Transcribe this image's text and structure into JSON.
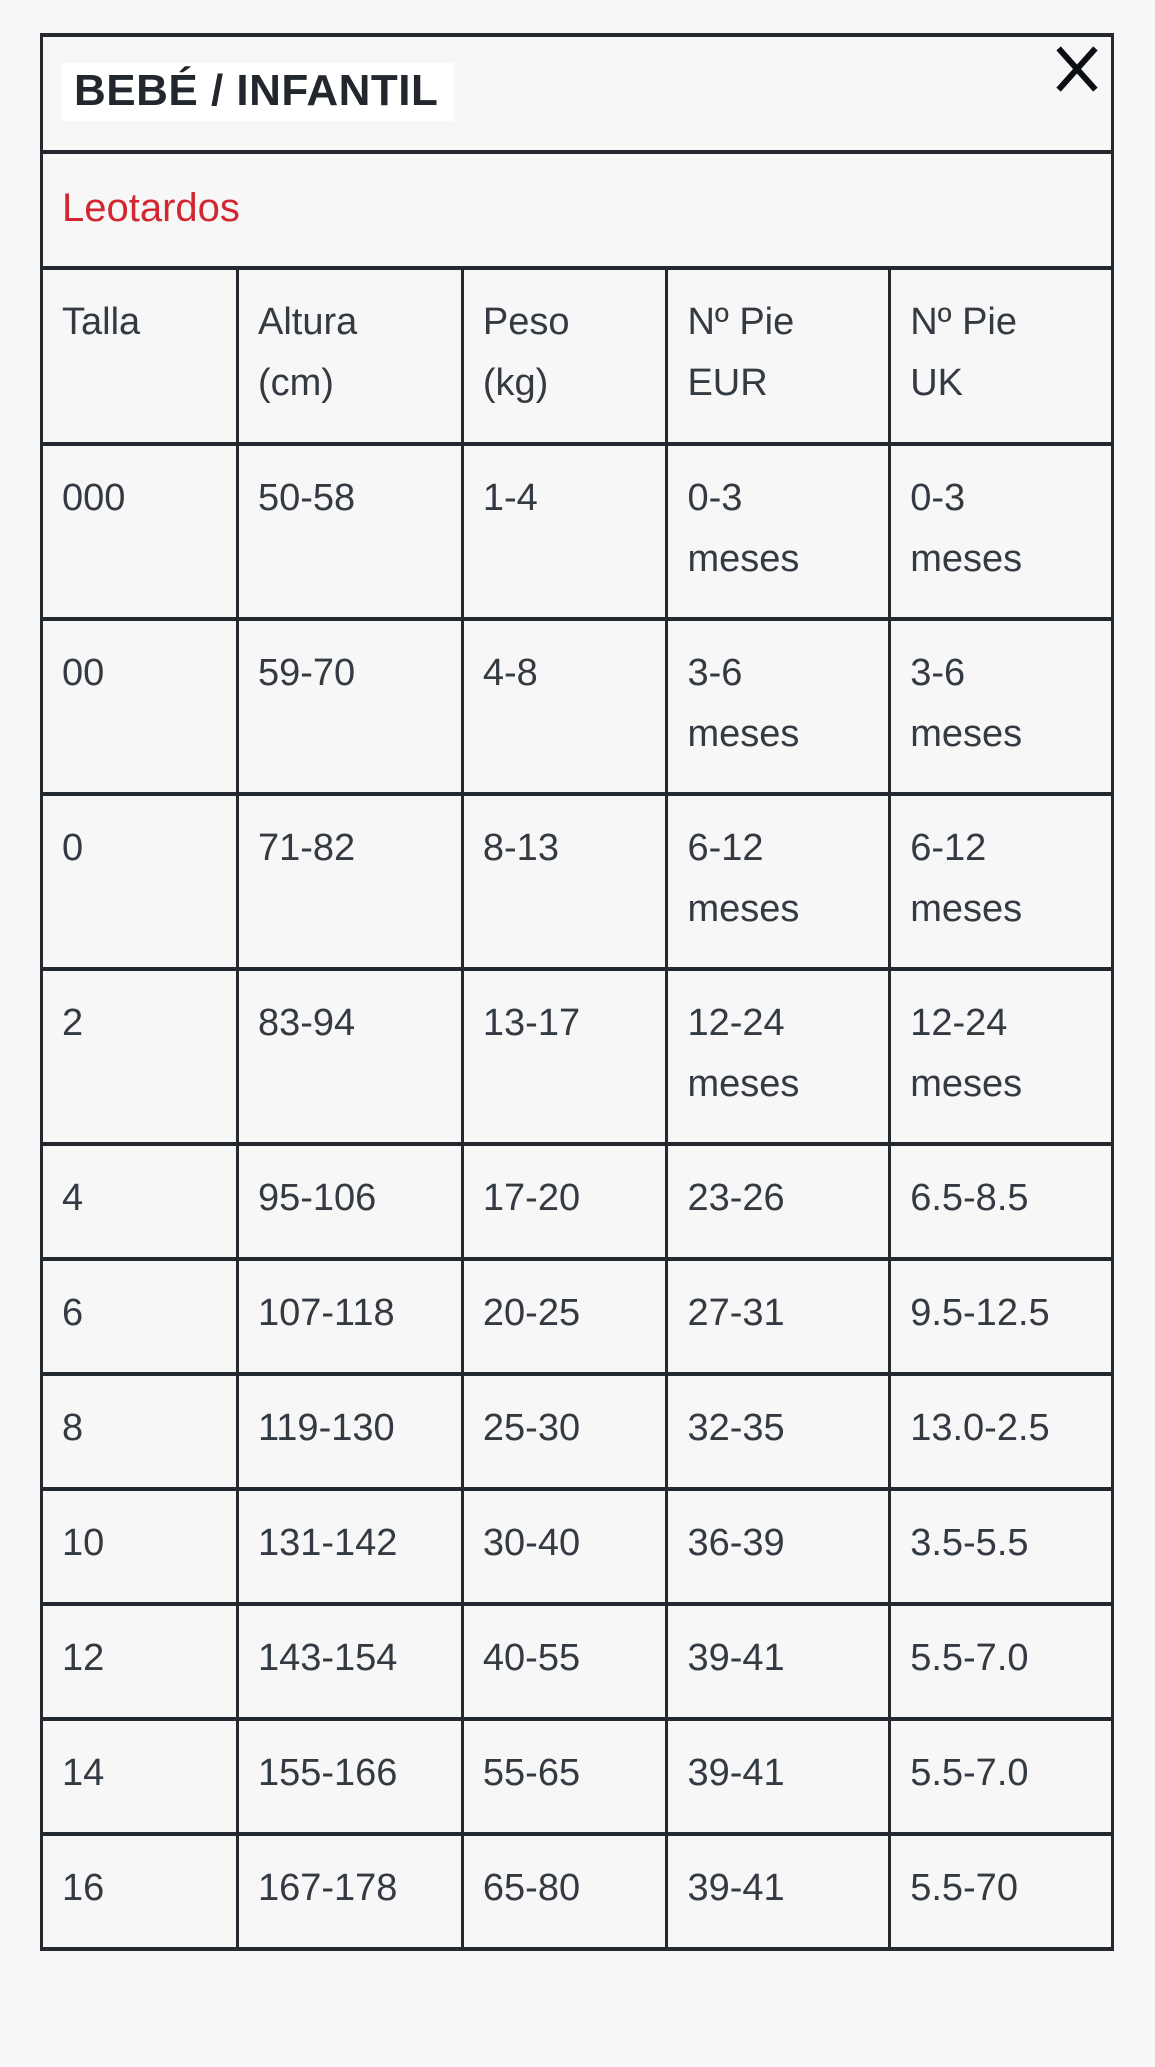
{
  "modal": {
    "title": "BEBÉ / INFANTIL",
    "subtitle": "Leotardos",
    "close_icon": "x-close"
  },
  "table": {
    "headers": [
      {
        "lines": [
          "Talla"
        ]
      },
      {
        "lines": [
          "Altura",
          "(cm)"
        ]
      },
      {
        "lines": [
          "Peso",
          "(kg)"
        ]
      },
      {
        "lines": [
          "Nº Pie",
          "EUR"
        ]
      },
      {
        "lines": [
          "Nº Pie",
          "UK"
        ]
      }
    ],
    "rows": [
      [
        [
          "000"
        ],
        [
          "50-58"
        ],
        [
          "1-4"
        ],
        [
          "0-3",
          "meses"
        ],
        [
          "0-3",
          "meses"
        ]
      ],
      [
        [
          "00"
        ],
        [
          "59-70"
        ],
        [
          "4-8"
        ],
        [
          "3-6",
          "meses"
        ],
        [
          "3-6",
          "meses"
        ]
      ],
      [
        [
          "0"
        ],
        [
          "71-82"
        ],
        [
          "8-13"
        ],
        [
          "6-12",
          "meses"
        ],
        [
          "6-12",
          "meses"
        ]
      ],
      [
        [
          "2"
        ],
        [
          "83-94"
        ],
        [
          "13-17"
        ],
        [
          "12-24",
          "meses"
        ],
        [
          "12-24",
          "meses"
        ]
      ],
      [
        [
          "4"
        ],
        [
          "95-106"
        ],
        [
          "17-20"
        ],
        [
          "23-26"
        ],
        [
          "6.5-8.5"
        ]
      ],
      [
        [
          "6"
        ],
        [
          "107-118"
        ],
        [
          "20-25"
        ],
        [
          "27-31"
        ],
        [
          "9.5-12.5"
        ]
      ],
      [
        [
          "8"
        ],
        [
          "119-130"
        ],
        [
          "25-30"
        ],
        [
          "32-35"
        ],
        [
          "13.0-2.5"
        ]
      ],
      [
        [
          "10"
        ],
        [
          "131-142"
        ],
        [
          "30-40"
        ],
        [
          "36-39"
        ],
        [
          "3.5-5.5"
        ]
      ],
      [
        [
          "12"
        ],
        [
          "143-154"
        ],
        [
          "40-55"
        ],
        [
          "39-41"
        ],
        [
          "5.5-7.0"
        ]
      ],
      [
        [
          "14"
        ],
        [
          "155-166"
        ],
        [
          "55-65"
        ],
        [
          "39-41"
        ],
        [
          "5.5-7.0"
        ]
      ],
      [
        [
          "16"
        ],
        [
          "167-178"
        ],
        [
          "65-80"
        ],
        [
          "39-41"
        ],
        [
          "5.5-70"
        ]
      ]
    ]
  },
  "colors": {
    "page_bg": "#f7f7f8",
    "border": "#24292f",
    "text": "#343a42",
    "title_text": "#22272e",
    "title_highlight_bg": "#ffffff",
    "accent_red": "#d12730",
    "close_icon_color": "#0b0e12"
  }
}
